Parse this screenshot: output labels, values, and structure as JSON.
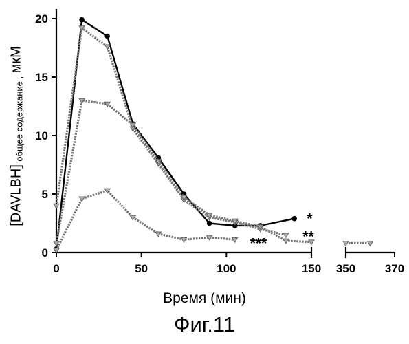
{
  "chart_data": {
    "type": "line",
    "title": "",
    "xlabel": "Время (мин)",
    "ylabel_main": "[DAVLBH]",
    "ylabel_sub": "общее содержание ,",
    "ylabel_unit": "мкМ",
    "ylim": [
      0,
      20
    ],
    "y_ticks": [
      "0",
      "5",
      "10",
      "15",
      "20"
    ],
    "x_ticks": [
      "0",
      "50",
      "100",
      "150",
      "350",
      "370"
    ],
    "x_break": {
      "segment1": [
        0,
        150
      ],
      "segment2": [
        350,
        370
      ]
    },
    "grid": false,
    "series": [
      {
        "marker": "circle",
        "color": "#000000",
        "x": [
          0,
          15,
          30,
          45,
          60,
          75,
          90,
          105,
          120,
          140
        ],
        "y": [
          0.3,
          19.9,
          18.5,
          11.0,
          8.1,
          5.0,
          2.5,
          2.3,
          2.3,
          2.9
        ]
      },
      {
        "marker": "triangle",
        "color": "#777777",
        "x": [
          0,
          15,
          30,
          45,
          60,
          75,
          90,
          105,
          120,
          135
        ],
        "y": [
          4.0,
          19.2,
          17.6,
          10.6,
          7.6,
          4.5,
          3.0,
          2.6,
          2.0,
          1.5
        ]
      },
      {
        "marker": "triangle",
        "color": "#777777",
        "x": [
          0,
          15,
          30,
          45,
          60,
          75,
          90,
          105,
          120,
          135,
          150,
          350,
          360
        ],
        "y": [
          0.8,
          13.0,
          12.7,
          10.9,
          7.8,
          4.7,
          3.2,
          2.7,
          2.2,
          1.0,
          0.9,
          0.8,
          0.8
        ]
      },
      {
        "marker": "triangle",
        "color": "#777777",
        "x": [
          0,
          15,
          30,
          45,
          60,
          75,
          90,
          105
        ],
        "y": [
          0.2,
          4.6,
          5.3,
          3.0,
          1.6,
          1.1,
          1.3,
          1.1
        ]
      }
    ],
    "annotations": [
      "*",
      "**",
      "***"
    ]
  },
  "caption": "Фиг.11"
}
